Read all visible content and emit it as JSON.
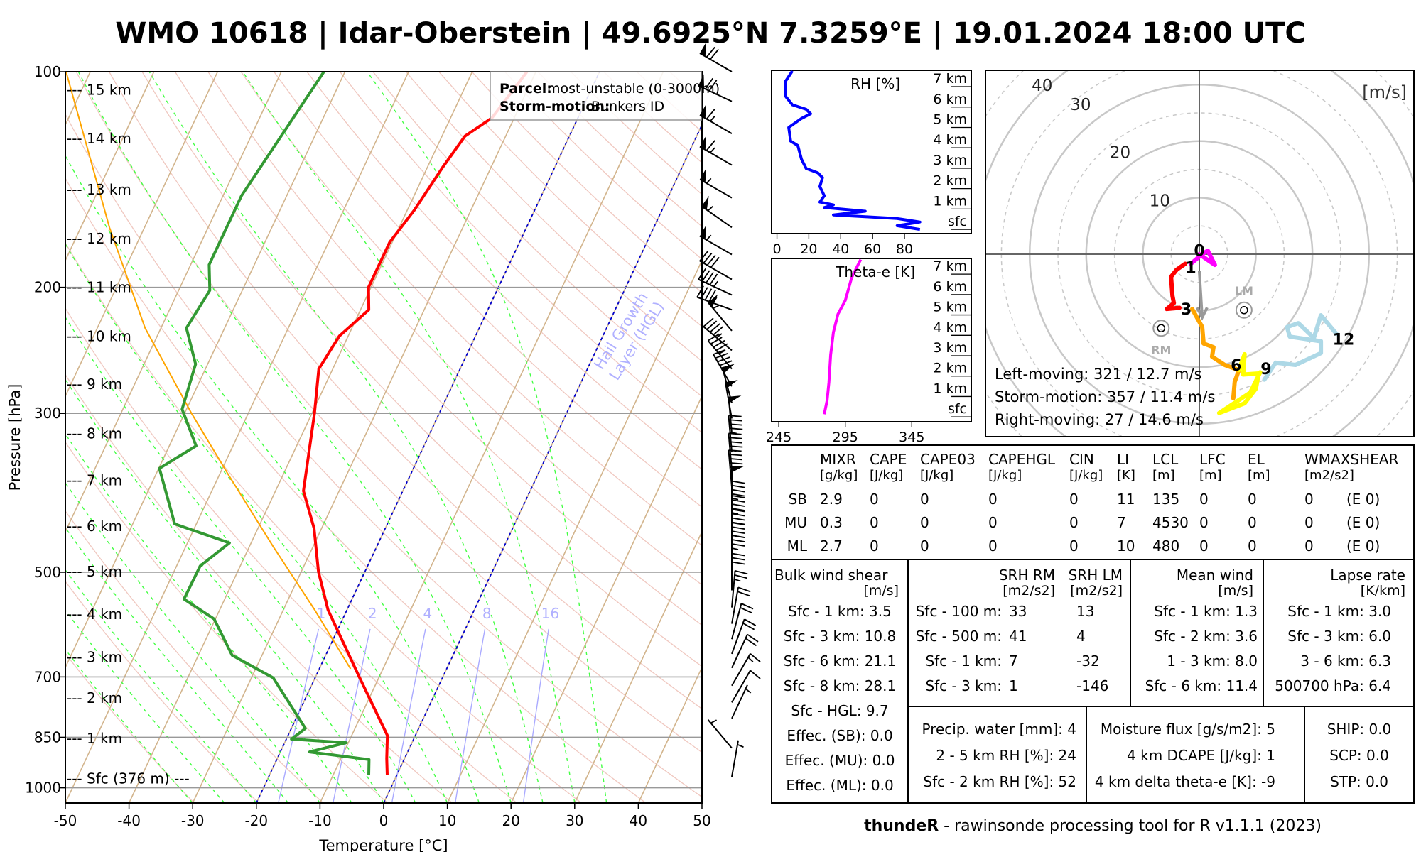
{
  "title": "WMO 10618 | Idar-Oberstein | 49.6925°N 7.3259°E | 19.01.2024 18:00 UTC",
  "chart_data": [
    {
      "type": "line",
      "name": "skew-T log-p diagram",
      "xlabel": "Temperature [°C]",
      "ylabel": "Pressure [hPa]",
      "xlim": [
        -50,
        50
      ],
      "ylim": [
        1050,
        100
      ],
      "temp_ticks": [
        "-50",
        "-40",
        "-30",
        "-20",
        "-10",
        "0",
        "10",
        "20",
        "30",
        "40",
        "50"
      ],
      "pressure_ticks": [
        "100",
        "200",
        "300",
        "500",
        "700",
        "850",
        "1000"
      ],
      "height_labels": [
        {
          "label": "--- 15 km",
          "p": 106
        },
        {
          "label": "--- 14 km",
          "p": 124
        },
        {
          "label": "--- 13 km",
          "p": 146
        },
        {
          "label": "--- 12 km",
          "p": 171
        },
        {
          "label": "--- 11 km",
          "p": 200
        },
        {
          "label": "--- 10 km",
          "p": 234
        },
        {
          "label": "--- 9 km",
          "p": 273
        },
        {
          "label": "--- 8 km",
          "p": 320
        },
        {
          "label": "--- 7 km",
          "p": 372
        },
        {
          "label": "--- 6 km",
          "p": 431
        },
        {
          "label": "--- 5 km",
          "p": 499
        },
        {
          "label": "--- 4 km",
          "p": 572
        },
        {
          "label": "--- 3 km",
          "p": 657
        },
        {
          "label": "--- 2 km",
          "p": 749
        },
        {
          "label": "--- 1 km",
          "p": 853
        },
        {
          "label": "--- Sfc (376 m) ---",
          "p": 971
        }
      ],
      "legend": {
        "parcel_label": "Parcel:",
        "parcel_value": "most-unstable (0-3000m)",
        "storm_label": "Storm-motion:",
        "storm_value": "Bunkers ID"
      },
      "hgl_label": "Hail Growth",
      "hgl_label2": "Layer (HGL)",
      "hgl_isotherms": [
        -20,
        0
      ],
      "mixing_ratio_labels": [
        "1",
        "2",
        "4",
        "8",
        "16"
      ],
      "mixing_ratio_values": [
        1,
        2,
        4,
        8,
        16
      ],
      "temperature": {
        "p": [
          960,
          910,
          845,
          702,
          564,
          499,
          434,
          385,
          300,
          260,
          234,
          215,
          200,
          173,
          156,
          136,
          123,
          116,
          100
        ],
        "T": [
          -1.5,
          -2.8,
          -4.4,
          -13,
          -23,
          -27.3,
          -31.2,
          -35.6,
          -39.6,
          -42.2,
          -41.4,
          -38.7,
          -40.4,
          -40.4,
          -38.9,
          -37.6,
          -36.4,
          -33.5,
          -31.4
        ]
      },
      "dewpoint": {
        "p": [
          960,
          913,
          891,
          865,
          855,
          826,
          702,
          653,
          581,
          545,
          490,
          455,
          428,
          358,
          333,
          296,
          256,
          228,
          202,
          186,
          149,
          100
        ],
        "Td": [
          -4.4,
          -5.5,
          -15.4,
          -10.3,
          -19.2,
          -17.8,
          -26.6,
          -34.7,
          -40.2,
          -46.4,
          -46.3,
          -43.4,
          -53.4,
          -59.9,
          -55.8,
          -60.7,
          -61.9,
          -66,
          -65.1,
          -67.1,
          -67.1,
          -63.3
        ]
      },
      "parcel": {
        "p": [
          682,
          564,
          460,
          364,
          300,
          228,
          165,
          100
        ],
        "T": [
          -15.1,
          -25.1,
          -36.3,
          -48.8,
          -58.9,
          -72.5,
          -85.5,
          -103.8
        ]
      },
      "winds": [
        {
          "p": 100,
          "dir": 300,
          "kt": 70
        },
        {
          "p": 110,
          "dir": 295,
          "kt": 70
        },
        {
          "p": 122,
          "dir": 300,
          "kt": 65
        },
        {
          "p": 135,
          "dir": 300,
          "kt": 65
        },
        {
          "p": 150,
          "dir": 300,
          "kt": 55
        },
        {
          "p": 165,
          "dir": 305,
          "kt": 55
        },
        {
          "p": 180,
          "dir": 300,
          "kt": 55
        },
        {
          "p": 195,
          "dir": 300,
          "kt": 40
        },
        {
          "p": 205,
          "dir": 295,
          "kt": 45
        },
        {
          "p": 215,
          "dir": 290,
          "kt": 45
        },
        {
          "p": 230,
          "dir": 320,
          "kt": 55
        },
        {
          "p": 245,
          "dir": 310,
          "kt": 45
        },
        {
          "p": 260,
          "dir": 320,
          "kt": 45
        },
        {
          "p": 275,
          "dir": 330,
          "kt": 45
        },
        {
          "p": 290,
          "dir": 345,
          "kt": 50
        },
        {
          "p": 305,
          "dir": 350,
          "kt": 50
        },
        {
          "p": 320,
          "dir": 355,
          "kt": 50
        },
        {
          "p": 340,
          "dir": 355,
          "kt": 45
        },
        {
          "p": 360,
          "dir": 355,
          "kt": 45
        },
        {
          "p": 380,
          "dir": 355,
          "kt": 45
        },
        {
          "p": 400,
          "dir": 0,
          "kt": 50
        },
        {
          "p": 420,
          "dir": 360,
          "kt": 45
        },
        {
          "p": 440,
          "dir": 360,
          "kt": 45
        },
        {
          "p": 460,
          "dir": 0,
          "kt": 40
        },
        {
          "p": 480,
          "dir": 0,
          "kt": 40
        },
        {
          "p": 500,
          "dir": 0,
          "kt": 35
        },
        {
          "p": 530,
          "dir": 0,
          "kt": 30
        },
        {
          "p": 560,
          "dir": 5,
          "kt": 25
        },
        {
          "p": 590,
          "dir": 10,
          "kt": 20
        },
        {
          "p": 620,
          "dir": 15,
          "kt": 20
        },
        {
          "p": 650,
          "dir": 20,
          "kt": 20
        },
        {
          "p": 680,
          "dir": 25,
          "kt": 20
        },
        {
          "p": 720,
          "dir": 30,
          "kt": 15
        },
        {
          "p": 760,
          "dir": 30,
          "kt": 10
        },
        {
          "p": 800,
          "dir": 25,
          "kt": 5
        },
        {
          "p": 880,
          "dir": 320,
          "kt": 3
        },
        {
          "p": 965,
          "dir": 10,
          "kt": 3
        }
      ]
    },
    {
      "type": "line",
      "name": "RH profile",
      "title": "RH [%]",
      "x_ticks": [
        "0",
        "20",
        "40",
        "60",
        "80"
      ],
      "height_labels": [
        "sfc",
        "1 km",
        "2 km",
        "3 km",
        "4 km",
        "5 km",
        "6 km",
        "7 km"
      ],
      "h_km": [
        7.77,
        7.23,
        6.56,
        6.11,
        5.89,
        5.67,
        5.44,
        5.0,
        4.33,
        4.11,
        3.44,
        2.99,
        2.77,
        2.54,
        2.1,
        1.65,
        1.34,
        1.2,
        1.07,
        0.89,
        0.71,
        0.53,
        0.36,
        0.18,
        0.0
      ],
      "rh": [
        9.7,
        5.1,
        5.1,
        9.7,
        18.3,
        21.1,
        15.4,
        7.4,
        8.6,
        13.1,
        15.4,
        18.3,
        25.7,
        28.6,
        26.9,
        29.7,
        26.9,
        35.4,
        29.7,
        55.4,
        35.4,
        75.4,
        89.7,
        75.4,
        89.7
      ]
    },
    {
      "type": "line",
      "name": "Theta-e profile",
      "title": "Theta-e [K]",
      "x_ticks": [
        "245",
        "295",
        "345"
      ],
      "height_labels": [
        "sfc",
        "1 km",
        "2 km",
        "3 km",
        "4 km",
        "5 km",
        "6 km",
        "7 km"
      ],
      "h_km": [
        7.72,
        6.83,
        5.71,
        5.04,
        4.15,
        3.04,
        1.7,
        0.8,
        0.13
      ],
      "theta_e": [
        306.6,
        299.8,
        295,
        289.5,
        286.1,
        284,
        282.7,
        281.3,
        279.2
      ]
    },
    {
      "type": "line",
      "name": "hodograph",
      "unit_label": "[m/s]",
      "ring_labels": [
        "10",
        "20",
        "30",
        "40"
      ],
      "segments": [
        {
          "label": "0",
          "color": "#ff00ff",
          "u": [
            0,
            2.75,
            1.5,
            0.5,
            -1.5
          ],
          "v": [
            0,
            -1.9,
            0.63,
            0,
            -1.69
          ]
        },
        {
          "label": "1",
          "color": "#ff0000",
          "u": [
            -2.5,
            -4,
            -5,
            -4.75,
            -4.5,
            -5.75,
            -3.5
          ],
          "v": [
            -1.69,
            -2.74,
            -4.0,
            -7.38,
            -8.65,
            -9.7,
            -9.49
          ]
        },
        {
          "label": "3",
          "color": "#ffa500",
          "u": [
            -1.25,
            0.5,
            0.75,
            2.5,
            2.25,
            4.5,
            7,
            6.25,
            6
          ],
          "v": [
            -9.7,
            -12.87,
            -15.8,
            -16.46,
            -18.14,
            -19.6,
            -20.5,
            -22.6,
            -25.5
          ]
        },
        {
          "label": "6",
          "color": "#ffff00",
          "u": [
            7,
            8,
            7.75,
            10.5,
            10,
            8,
            3.5,
            9,
            10.75
          ],
          "v": [
            -20.5,
            -17.7,
            -21.3,
            -21.1,
            -23.8,
            -26.4,
            -28.1,
            -24.5,
            -20.9
          ]
        },
        {
          "label": "9",
          "color": "#add8e6",
          "u": [
            11.5,
            13.5,
            17,
            21.5,
            21.5,
            16,
            15.5,
            17.5,
            20.25,
            21.5,
            24.25
          ],
          "v": [
            -22.2,
            -19.2,
            -19.6,
            -17.5,
            -15.4,
            -14.6,
            -12.9,
            -12.2,
            -14.8,
            -10.8,
            -14.1
          ]
        }
      ],
      "height_marks": [
        {
          "label": "0",
          "u": 0,
          "v": 0.7
        },
        {
          "label": "1",
          "u": -1.5,
          "v": -2.3
        },
        {
          "label": "3",
          "u": -2.3,
          "v": -9.7
        },
        {
          "label": "6",
          "u": 6.5,
          "v": -19.6
        },
        {
          "label": "9",
          "u": 11.8,
          "v": -20.2
        },
        {
          "label": "12",
          "u": 25.5,
          "v": -15
        }
      ],
      "mean_wind": {
        "u0": 0,
        "v0": -3,
        "u1": 0.5,
        "v1": -11.2
      },
      "rm": {
        "label": "RM",
        "u": -6.75,
        "v": -13.1
      },
      "lm": {
        "label": "LM",
        "u": 7.9,
        "v": -9.9
      },
      "texts": [
        "Left-moving: 321 / 12.7 m/s",
        "Storm-motion: 357 / 11.4 m/s",
        "Right-moving: 27 / 14.6 m/s"
      ]
    }
  ],
  "params": {
    "columns": [
      {
        "name": "MIXR",
        "unit": "[g/kg]"
      },
      {
        "name": "CAPE",
        "unit": "[J/kg]"
      },
      {
        "name": "CAPE03",
        "unit": "[J/kg]"
      },
      {
        "name": "CAPEHGL",
        "unit": "[J/kg]"
      },
      {
        "name": "CIN",
        "unit": "[J/kg]"
      },
      {
        "name": "LI",
        "unit": "[K]"
      },
      {
        "name": "LCL",
        "unit": "[m]"
      },
      {
        "name": "LFC",
        "unit": "[m]"
      },
      {
        "name": "EL",
        "unit": "[m]"
      },
      {
        "name": "WMAXSHEAR",
        "unit": "[m2/s2]"
      }
    ],
    "rows": [
      {
        "label": "SB",
        "values": [
          "2.9",
          "0",
          "0",
          "0",
          "0",
          "11",
          "135",
          "0",
          "0",
          "0",
          "(E 0)"
        ]
      },
      {
        "label": "MU",
        "values": [
          "0.3",
          "0",
          "0",
          "0",
          "0",
          "7",
          "4530",
          "0",
          "0",
          "0",
          "(E 0)"
        ]
      },
      {
        "label": "ML",
        "values": [
          "2.7",
          "0",
          "0",
          "0",
          "0",
          "10",
          "480",
          "0",
          "0",
          "0",
          "(E 0)"
        ]
      }
    ]
  },
  "shear": {
    "title": "Bulk wind shear",
    "unit": "[m/s]",
    "items": [
      "Sfc - 1 km: 3.5",
      "Sfc - 3 km: 10.8",
      "Sfc - 6 km: 21.1",
      "Sfc - 8 km: 28.1",
      "Sfc - HGL: 9.7",
      "Effec. (SB): 0.0",
      "Effec. (MU): 0.0",
      "Effec. (ML): 0.0"
    ]
  },
  "srh": {
    "rm_title": "SRH RM",
    "lm_title": "SRH LM",
    "unit": "[m2/s2]",
    "rows": [
      {
        "label": "Sfc - 100 m:",
        "rm": "33",
        "lm": "13"
      },
      {
        "label": "Sfc - 500 m:",
        "rm": "41",
        "lm": "4"
      },
      {
        "label": "Sfc - 1 km:",
        "rm": "7",
        "lm": "-32"
      },
      {
        "label": "Sfc - 3 km:",
        "rm": "1",
        "lm": "-146"
      }
    ]
  },
  "mean_wind": {
    "title": "Mean wind",
    "unit": "[m/s]",
    "items": [
      "Sfc - 1 km: 1.3",
      "Sfc - 2 km: 3.6",
      "1 - 3 km: 8.0",
      "Sfc - 6 km: 11.4"
    ]
  },
  "lapse": {
    "title": "Lapse rate",
    "unit": "[K/km]",
    "items": [
      "Sfc - 1 km: 3.0",
      "Sfc - 3 km: 6.0",
      "3 - 6 km: 6.3",
      "500700 hPa: 6.4"
    ]
  },
  "moisture": {
    "items": [
      "Precip. water [mm]: 4",
      "2 - 5 km RH [%]: 24",
      "Sfc - 2 km RH [%]: 52"
    ]
  },
  "flux": {
    "items": [
      "Moisture flux [g/s/m2]: 5",
      "4 km DCAPE [J/kg]: 1",
      "4 km delta theta-e [K]: -9"
    ]
  },
  "composite": {
    "items": [
      "SHIP: 0.0",
      "SCP: 0.0",
      "STP: 0.0"
    ]
  },
  "footer": {
    "bold": "thundeR",
    "rest": " - rawinsonde processing tool for R v1.1.1 (2023)"
  },
  "colors": {
    "temperature": "#ff0000",
    "dewpoint": "#339933",
    "parcel": "#ffa500",
    "rh": "#0000ff",
    "theta_e": "#ff00ff",
    "isotherm": "#d2b48c",
    "dry_adiabat": "#f0c8c0",
    "moist_adiabat": "#44ff44",
    "mixing_ratio": "#aaaaff",
    "hgl": "#0000cc"
  }
}
